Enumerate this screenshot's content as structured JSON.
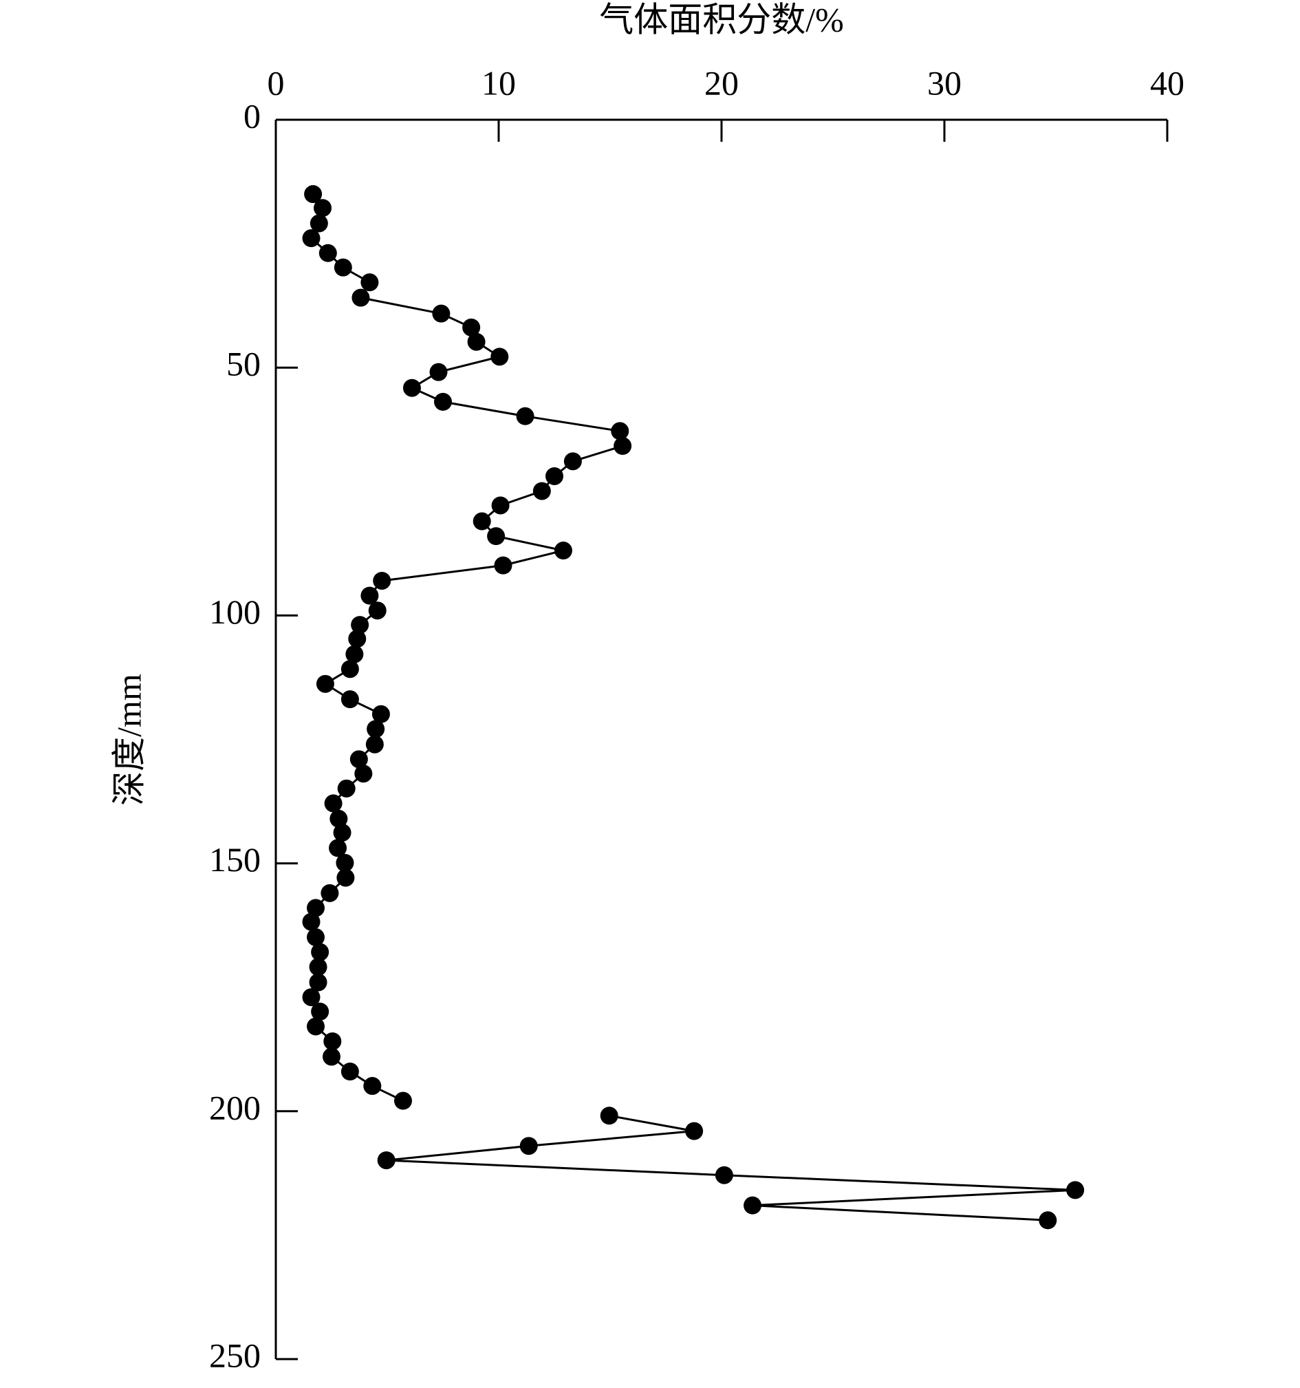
{
  "chart_data": {
    "type": "line",
    "marker": "circle",
    "x_label": "气体面积分数/%",
    "y_label": "深度/mm",
    "xlim": [
      0,
      40
    ],
    "xticks": [
      0,
      10,
      20,
      30,
      40
    ],
    "ylim": [
      0,
      250
    ],
    "yticks": [
      0,
      50,
      100,
      150,
      200,
      250
    ],
    "x_axis_position": "top",
    "y_inverted": true,
    "grid": false,
    "series": [
      {
        "color": "#000000",
        "x": [
          1.67,
          2.1,
          1.94,
          1.59,
          2.34,
          3.02,
          4.21,
          3.81,
          7.42,
          8.77,
          9.0,
          10.04,
          7.3,
          6.11,
          7.5,
          11.19,
          15.44,
          15.56,
          13.33,
          12.5,
          11.94,
          10.08,
          9.25,
          9.88,
          12.9,
          10.2,
          4.76,
          4.21,
          4.56,
          3.77,
          3.65,
          3.53,
          3.33,
          2.22,
          3.33,
          4.72,
          4.48,
          4.44,
          3.73,
          3.93,
          3.17,
          2.58,
          2.82,
          2.98,
          2.78,
          3.1,
          3.13,
          2.42,
          1.79,
          1.59,
          1.79,
          1.98,
          1.9,
          1.9,
          1.59,
          1.98,
          1.79,
          2.54,
          2.5,
          3.33,
          4.33,
          5.71
        ],
        "y": [
          15.0,
          17.8,
          20.9,
          23.9,
          26.9,
          29.8,
          32.8,
          35.9,
          39.1,
          41.9,
          44.8,
          47.8,
          50.9,
          54.1,
          56.9,
          59.8,
          62.8,
          65.8,
          68.9,
          71.9,
          74.9,
          77.8,
          81.0,
          84.0,
          86.9,
          89.9,
          93.0,
          96.0,
          99.0,
          101.9,
          104.7,
          107.8,
          110.8,
          113.8,
          116.9,
          119.9,
          122.9,
          126.0,
          129.0,
          131.9,
          134.9,
          137.9,
          141.0,
          143.8,
          146.9,
          149.9,
          152.9,
          156.0,
          159.0,
          161.8,
          164.9,
          167.9,
          170.9,
          174.0,
          177.0,
          179.9,
          182.9,
          185.9,
          189.0,
          192.0,
          194.9,
          197.9
        ]
      },
      {
        "color": "#000000",
        "x": [
          14.96,
          18.77,
          11.35,
          4.96,
          20.12,
          35.87,
          21.39,
          34.64
        ],
        "y": [
          200.9,
          204.0,
          207.0,
          209.9,
          212.9,
          215.9,
          219.0,
          222.0
        ]
      }
    ]
  }
}
